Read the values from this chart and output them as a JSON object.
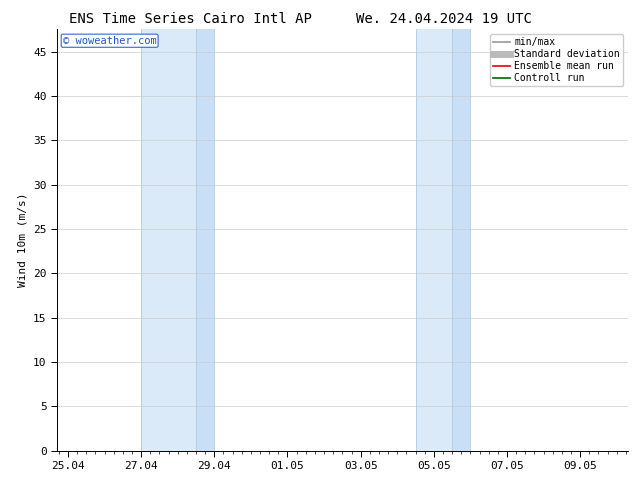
{
  "title_left": "ENS Time Series Cairo Intl AP",
  "title_right": "We. 24.04.2024 19 UTC",
  "ylabel": "Wind 10m (m/s)",
  "ylim": [
    0,
    47.5
  ],
  "yticks": [
    0,
    5,
    10,
    15,
    20,
    25,
    30,
    35,
    40,
    45
  ],
  "xtick_labels": [
    "25.04",
    "27.04",
    "29.04",
    "01.05",
    "03.05",
    "05.05",
    "07.05",
    "09.05"
  ],
  "xtick_positions": [
    0,
    2,
    4,
    6,
    8,
    10,
    12,
    14
  ],
  "xlim": [
    -0.3,
    15.3
  ],
  "shade_bands": [
    {
      "x_start": 2.0,
      "x_end": 3.5,
      "color": "#daeaf8"
    },
    {
      "x_start": 3.5,
      "x_end": 4.0,
      "color": "#c8dff5"
    },
    {
      "x_start": 9.5,
      "x_end": 10.5,
      "color": "#daeaf8"
    },
    {
      "x_start": 10.5,
      "x_end": 11.0,
      "color": "#c8dff5"
    }
  ],
  "band_edges": [
    2.0,
    3.5,
    4.0,
    9.5,
    10.5,
    11.0
  ],
  "band_edge_color": "#b0cce0",
  "watermark_text": "© woweather.com",
  "watermark_color": "#2255cc",
  "legend_items": [
    {
      "label": "min/max",
      "color": "#999999",
      "lw": 1.2,
      "ls": "-"
    },
    {
      "label": "Standard deviation",
      "color": "#bbbbbb",
      "lw": 5,
      "ls": "-"
    },
    {
      "label": "Ensemble mean run",
      "color": "#ee0000",
      "lw": 1.2,
      "ls": "-"
    },
    {
      "label": "Controll run",
      "color": "#006600",
      "lw": 1.2,
      "ls": "-"
    }
  ],
  "bg_color": "#ffffff",
  "grid_color": "#cccccc",
  "title_fontsize": 10,
  "tick_fontsize": 8,
  "ylabel_fontsize": 8
}
